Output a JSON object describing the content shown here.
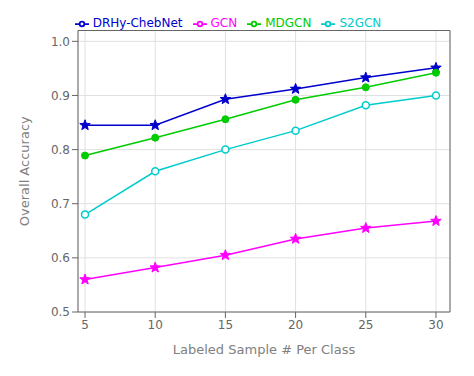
{
  "chart_data": {
    "type": "line",
    "xlabel": "Labeled Sample # Per Class",
    "ylabel": "Overall Accuracy",
    "x": [
      5,
      10,
      15,
      20,
      25,
      30
    ],
    "series": [
      {
        "name": "DRHy-ChebNet",
        "color": "#0000CD",
        "marker": "star",
        "line_style": "solid",
        "values": [
          0.845,
          0.845,
          0.893,
          0.912,
          0.933,
          0.951
        ]
      },
      {
        "name": "MDGCN",
        "color": "#00CC00",
        "marker": "circle",
        "line_style": "solid",
        "values": [
          0.789,
          0.822,
          0.856,
          0.892,
          0.915,
          0.942
        ]
      },
      {
        "name": "S2GCN",
        "color": "#00CCCC",
        "marker": "open_circle",
        "line_style": "solid",
        "values": [
          0.68,
          0.76,
          0.8,
          0.835,
          0.882,
          0.9
        ]
      },
      {
        "name": "GCN",
        "color": "#FF00FF",
        "marker": "star",
        "line_style": "solid",
        "values": [
          0.56,
          0.582,
          0.605,
          0.635,
          0.655,
          0.668
        ]
      }
    ],
    "xlim": [
      4.5,
      31
    ],
    "ylim": [
      0.5,
      1.02
    ],
    "xticks": [
      5,
      10,
      15,
      20,
      25,
      30
    ],
    "yticks": [
      0.5,
      0.6,
      0.7,
      0.8,
      0.9,
      {
        "value": 1.0,
        "label": "1.0"
      }
    ],
    "grid": true,
    "legend": "top"
  }
}
